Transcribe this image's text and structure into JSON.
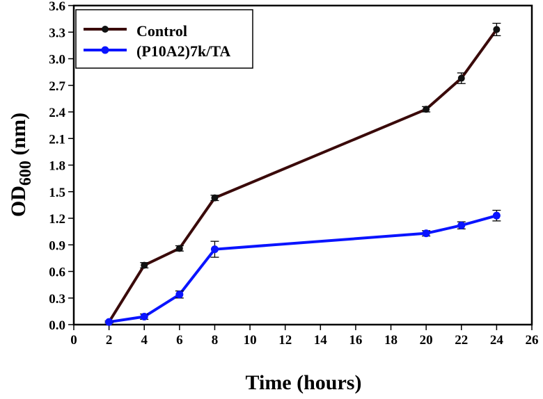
{
  "chart_data": {
    "type": "line",
    "title": "",
    "xlabel": "Time (hours)",
    "ylabel_main": "OD",
    "ylabel_sub": "600",
    "ylabel_unit": " (nm)",
    "xlim": [
      0,
      26
    ],
    "ylim": [
      0,
      3.6
    ],
    "xticks": [
      "0",
      "2",
      "4",
      "6",
      "8",
      "10",
      "12",
      "14",
      "16",
      "18",
      "20",
      "22",
      "24",
      "26"
    ],
    "yticks": [
      "0.0",
      "0.3",
      "0.6",
      "0.9",
      "1.2",
      "1.5",
      "1.8",
      "2.1",
      "2.4",
      "2.7",
      "3.0",
      "3.3",
      "3.6"
    ],
    "grid": false,
    "legend_position": "top-left",
    "x": [
      2,
      4,
      6,
      8,
      20,
      22,
      24
    ],
    "series": [
      {
        "name": "Control",
        "color": "#3a0a0a",
        "marker_color": "#111111",
        "values": [
          0.03,
          0.67,
          0.86,
          1.43,
          2.43,
          2.78,
          3.33
        ],
        "errors": [
          0.01,
          0.03,
          0.03,
          0.03,
          0.03,
          0.06,
          0.07
        ]
      },
      {
        "name": "(P10A2)7k/TA",
        "color": "#0a14ff",
        "marker_color": "#0a14ff",
        "values": [
          0.03,
          0.09,
          0.34,
          0.85,
          1.03,
          1.12,
          1.23
        ],
        "errors": [
          0.01,
          0.03,
          0.04,
          0.09,
          0.03,
          0.04,
          0.06
        ]
      }
    ]
  }
}
